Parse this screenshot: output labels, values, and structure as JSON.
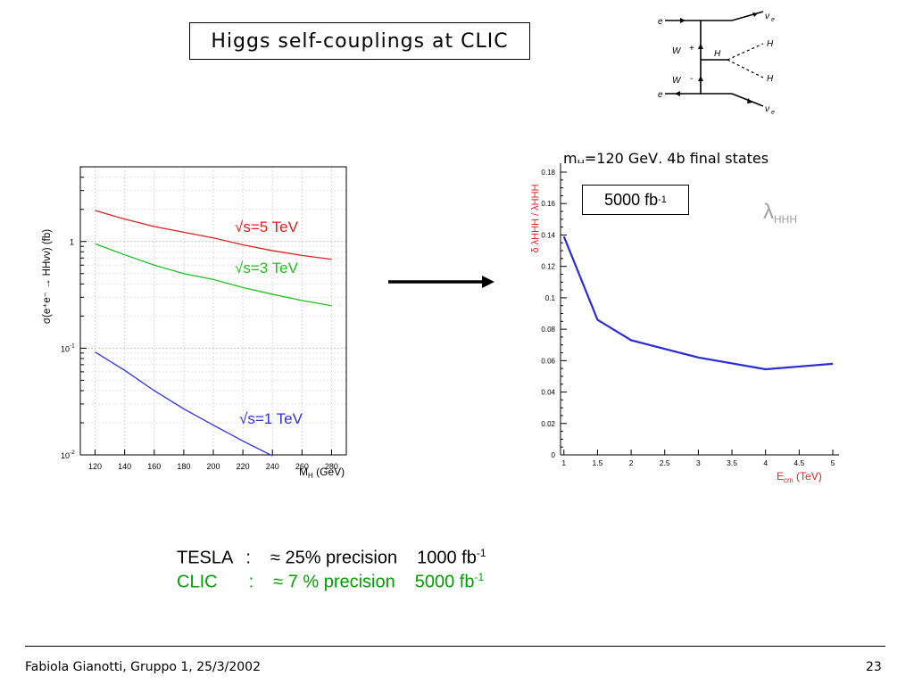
{
  "slide": {
    "title": "Higgs  self-couplings  at  CLIC",
    "footer_left": "Fabiola Gianotti,  Gruppo 1, 25/3/2002",
    "page_number": "23"
  },
  "diagram": {
    "labels": [
      "e",
      "W",
      "+",
      "H",
      "H",
      "H",
      "W",
      "-",
      "e",
      "ν",
      "e",
      "ν",
      "e"
    ]
  },
  "summary": {
    "tesla": {
      "name": "TESLA",
      "sep": ":",
      "approx": "≈",
      "precision": "25% precision",
      "lumi": "1000 fb",
      "sup": "-1"
    },
    "clic": {
      "name": "CLIC",
      "sep": ":",
      "approx": "≈",
      "precision": "7 % precision",
      "lumi": "5000 fb",
      "sup": "-1"
    },
    "colors": {
      "tesla": "#000000",
      "clic": "#00a000"
    }
  },
  "right_header": {
    "m": "m",
    "sub": "H",
    "rest": "=120 GeV, 4b final states"
  },
  "lumi_box": {
    "text": "5000 fb",
    "sup": "-1"
  },
  "chart_data": [
    {
      "type": "line",
      "ylabel": "σ(e⁺e⁻ → HHνν) (fb)",
      "xlabel_main": "M",
      "xlabel_sub": "H",
      "xlabel_unit": " (GeV)",
      "xlim": [
        110,
        290
      ],
      "ylim_log10": [
        -2,
        0.7
      ],
      "y_scale": "log",
      "x_ticks": [
        120,
        140,
        160,
        180,
        200,
        220,
        240,
        260,
        280
      ],
      "y_tick_labels": [
        {
          "value": 1,
          "base": "1",
          "exp": ""
        },
        {
          "value": 0.1,
          "base": "10",
          "exp": "-1"
        },
        {
          "value": 0.01,
          "base": "10",
          "exp": "-2"
        }
      ],
      "series": [
        {
          "name": "√s=5 TeV",
          "color": "#e02020",
          "x": [
            120,
            140,
            160,
            180,
            200,
            220,
            240,
            260,
            280
          ],
          "y": [
            1.95,
            1.62,
            1.38,
            1.22,
            1.08,
            0.93,
            0.82,
            0.74,
            0.68
          ]
        },
        {
          "name": "√s=3 TeV",
          "color": "#20c020",
          "x": [
            120,
            140,
            160,
            180,
            200,
            220,
            240,
            260,
            280
          ],
          "y": [
            0.95,
            0.75,
            0.6,
            0.5,
            0.44,
            0.37,
            0.32,
            0.28,
            0.25
          ]
        },
        {
          "name": "√s=1 TeV",
          "color": "#3030e0",
          "x": [
            120,
            140,
            160,
            180,
            200,
            220,
            240
          ],
          "y": [
            0.092,
            0.062,
            0.04,
            0.027,
            0.019,
            0.0135,
            0.0098
          ]
        }
      ]
    },
    {
      "type": "line",
      "ylabel": "δ λHHH / λHHH",
      "xlabel": "E",
      "xlabel_sub": "cm",
      "xlabel_unit": " (TeV)",
      "legend": "λHHH",
      "legend_base": "λ",
      "legend_sub": "HHH",
      "xlim": [
        0.95,
        5
      ],
      "ylim": [
        0,
        0.18
      ],
      "x_ticks": [
        1,
        1.5,
        2,
        2.5,
        3,
        3.5,
        4,
        4.5,
        5
      ],
      "x_tick_labels": [
        "1",
        "1.5",
        "2",
        "2.5",
        "3",
        "3.5",
        "4",
        "4.5",
        "5"
      ],
      "y_ticks": [
        0,
        0.02,
        0.04,
        0.06,
        0.08,
        0.1,
        0.12,
        0.14,
        0.16,
        0.18
      ],
      "y_tick_labels": [
        "0",
        "0.02",
        "0.04",
        "0.06",
        "0.08",
        "0.1",
        "0.12",
        "0.14",
        "0.16",
        "0.18"
      ],
      "series": [
        {
          "color": "#2a2ad8",
          "x": [
            1,
            1.5,
            2,
            3,
            4,
            5
          ],
          "y": [
            0.139,
            0.086,
            0.073,
            0.062,
            0.0545,
            0.058
          ]
        }
      ]
    }
  ]
}
